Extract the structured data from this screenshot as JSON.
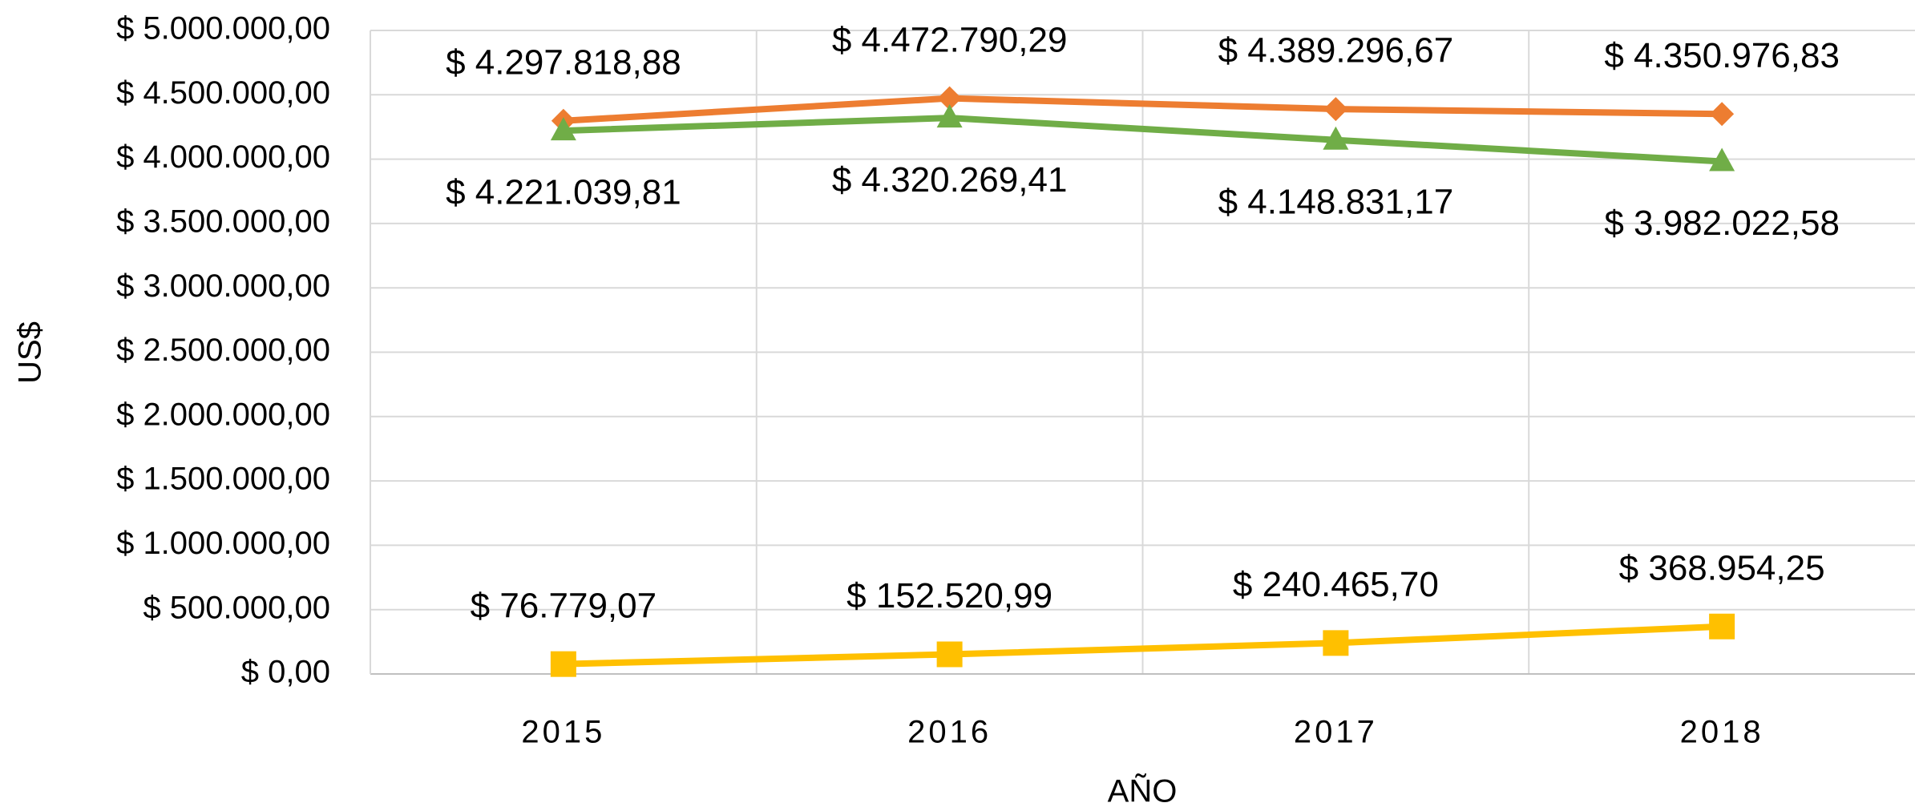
{
  "chart_data": {
    "type": "line",
    "x_label": "AÑO",
    "y_label": "US$",
    "categories": [
      "2015",
      "2016",
      "2017",
      "2018"
    ],
    "series": [
      {
        "color": "#ED7D31",
        "marker": "diamond",
        "label_position": "above",
        "values": [
          4297818.88,
          4472790.29,
          4389296.67,
          4350976.83
        ],
        "value_labels": [
          "$ 4.297.818,88",
          "$ 4.472.790,29",
          "$ 4.389.296,67",
          "$ 4.350.976,83"
        ]
      },
      {
        "color": "#70AD47",
        "marker": "triangle",
        "label_position": "below",
        "values": [
          4221039.81,
          4320269.41,
          4148831.17,
          3982022.58
        ],
        "value_labels": [
          "$ 4.221.039,81",
          "$ 4.320.269,41",
          "$ 4.148.831,17",
          "$ 3.982.022,58"
        ]
      },
      {
        "color": "#FFC000",
        "marker": "square",
        "label_position": "above",
        "values": [
          76779.07,
          152520.99,
          240465.7,
          368954.25
        ],
        "value_labels": [
          "$ 76.779,07",
          "$ 152.520,99",
          "$ 240.465,70",
          "$ 368.954,25"
        ]
      }
    ],
    "ylim": [
      0,
      5000000
    ],
    "yticks": [
      {
        "value": 0,
        "label": "$ 0,00"
      },
      {
        "value": 500000,
        "label": "$ 500.000,00"
      },
      {
        "value": 1000000,
        "label": "$ 1.000.000,00"
      },
      {
        "value": 1500000,
        "label": "$ 1.500.000,00"
      },
      {
        "value": 2000000,
        "label": "$ 2.000.000,00"
      },
      {
        "value": 2500000,
        "label": "$ 2.500.000,00"
      },
      {
        "value": 3000000,
        "label": "$ 3.000.000,00"
      },
      {
        "value": 3500000,
        "label": "$ 3.500.000,00"
      },
      {
        "value": 4000000,
        "label": "$ 4.000.000,00"
      },
      {
        "value": 4500000,
        "label": "$ 4.500.000,00"
      },
      {
        "value": 5000000,
        "label": "$ 5.000.000,00"
      }
    ],
    "grid": true
  }
}
